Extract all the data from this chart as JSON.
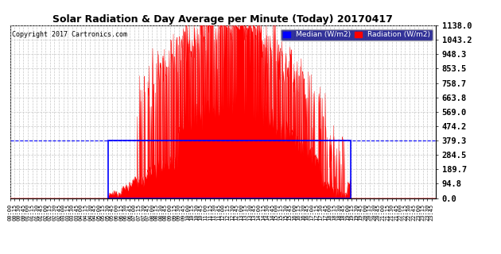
{
  "title": "Solar Radiation & Day Average per Minute (Today) 20170417",
  "copyright": "Copyright 2017 Cartronics.com",
  "legend_median_label": "Median (W/m2)",
  "legend_radiation_label": "Radiation (W/m2)",
  "yticks": [
    0.0,
    94.8,
    189.7,
    284.5,
    379.3,
    474.2,
    569.0,
    663.8,
    758.7,
    853.5,
    948.3,
    1043.2,
    1138.0
  ],
  "ymax": 1138.0,
  "ymin": 0.0,
  "total_minutes": 1440,
  "sunrise_minute": 331,
  "sunset_minute": 1150,
  "median_value": 379.3,
  "background_color": "#ffffff",
  "plot_bg_color": "#ffffff",
  "radiation_color": "#ff0000",
  "median_color": "#0000ff",
  "grid_color": "#c8c8c8",
  "title_color": "#000000",
  "copyright_color": "#000000"
}
